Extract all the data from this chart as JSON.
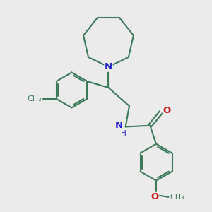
{
  "bg_color": "#ebebeb",
  "bond_color": "#3d7a5c",
  "N_color": "#2020cc",
  "O_color": "#cc2020",
  "bond_width": 1.5,
  "font_size": 8.5,
  "fig_size": [
    3.0,
    3.0
  ],
  "dpi": 100,
  "xlim": [
    0.5,
    8.5
  ],
  "ylim": [
    0.5,
    9.0
  ]
}
